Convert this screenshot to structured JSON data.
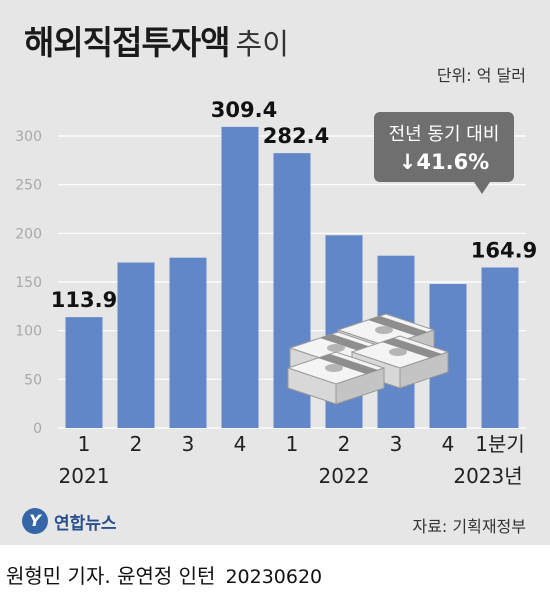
{
  "title": {
    "main": "해외직접투자액",
    "sub": "추이"
  },
  "unit": "단위: 억 달러",
  "callout": {
    "line1": "전년 동기 대비",
    "line2": "↓41.6%"
  },
  "source": "자료: 기획재정부",
  "logo": {
    "mark": "Y",
    "text": "연합뉴스"
  },
  "credit": {
    "byline": "원형민 기자. 윤연정 인턴",
    "date": "20230620"
  },
  "colors": {
    "bar": "#6287c8",
    "background": "#e6e6e6",
    "grid": "#ffffff",
    "callout": "#6f6f6f"
  },
  "chart_data": {
    "type": "bar",
    "categories": [
      "1",
      "2",
      "3",
      "4",
      "1",
      "2",
      "3",
      "4",
      "1분기"
    ],
    "group_labels": [
      "2021",
      "2022",
      "2023년"
    ],
    "values": [
      113.9,
      170,
      175,
      309.4,
      282.4,
      198,
      177,
      148,
      164.9
    ],
    "data_labels": [
      "113.9",
      "",
      "",
      "309.4",
      "282.4",
      "",
      "",
      "",
      "164.9"
    ],
    "yticks": [
      "0",
      "50",
      "100",
      "150",
      "200",
      "250",
      "300"
    ],
    "ylim": [
      0,
      300
    ],
    "grid": true
  }
}
